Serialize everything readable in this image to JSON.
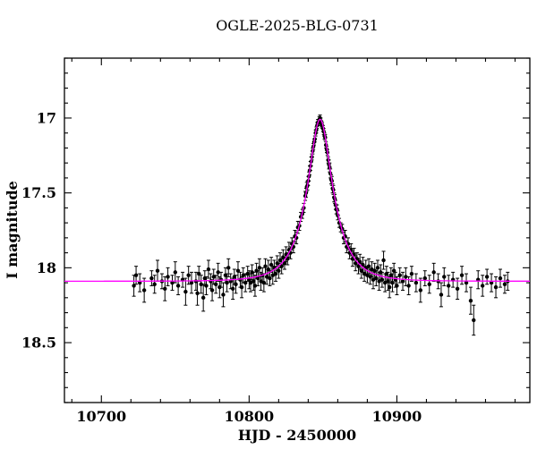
{
  "chart_data": {
    "type": "scatter",
    "title": "OGLE-2025-BLG-0731",
    "xlabel": "HJD - 2450000",
    "ylabel": "I magnitude",
    "xlim": [
      10675,
      10990
    ],
    "ylim": [
      16.6,
      18.9
    ],
    "y_axis_inverted_magnitude": true,
    "x_ticks_major": [
      10700,
      10800,
      10900
    ],
    "x_minor_step": 20,
    "y_ticks_major": [
      17,
      17.5,
      18,
      18.5
    ],
    "y_minor_step": 0.1,
    "grid": false,
    "legend": "none",
    "series": [
      {
        "name": "OGLE I-band photometry",
        "type": "scatter",
        "marker": "filled-circle-with-errorbars",
        "color": "#000000",
        "points": [
          [
            10722,
            18.12,
            0.07
          ],
          [
            10723.5,
            18.05,
            0.06
          ],
          [
            10726,
            18.1,
            0.06
          ],
          [
            10729,
            18.15,
            0.08
          ],
          [
            10734,
            18.07,
            0.05
          ],
          [
            10736,
            18.11,
            0.06
          ],
          [
            10738,
            18.02,
            0.07
          ],
          [
            10741,
            18.09,
            0.05
          ],
          [
            10743,
            18.14,
            0.08
          ],
          [
            10745,
            18.06,
            0.06
          ],
          [
            10748,
            18.1,
            0.05
          ],
          [
            10750,
            18.03,
            0.07
          ],
          [
            10752,
            18.12,
            0.06
          ],
          [
            10755,
            18.08,
            0.05
          ],
          [
            10757,
            18.16,
            0.09
          ],
          [
            10759,
            18.05,
            0.06
          ],
          [
            10761,
            18.1,
            0.07
          ],
          [
            10764,
            18.09,
            0.06
          ],
          [
            10765,
            18.17,
            0.08
          ],
          [
            10766,
            18.04,
            0.05
          ],
          [
            10767.5,
            18.11,
            0.06
          ],
          [
            10769,
            18.2,
            0.09
          ],
          [
            10770,
            18.07,
            0.05
          ],
          [
            10771,
            18.12,
            0.06
          ],
          [
            10772.5,
            18.01,
            0.06
          ],
          [
            10774,
            18.09,
            0.05
          ],
          [
            10775,
            18.15,
            0.07
          ],
          [
            10776,
            18.06,
            0.05
          ],
          [
            10777.5,
            18.11,
            0.06
          ],
          [
            10779,
            18.03,
            0.06
          ],
          [
            10780,
            18.13,
            0.07
          ],
          [
            10781,
            18.08,
            0.05
          ],
          [
            10782.5,
            18.18,
            0.08
          ],
          [
            10784,
            18.05,
            0.05
          ],
          [
            10785,
            18.1,
            0.06
          ],
          [
            10786,
            18.0,
            0.06
          ],
          [
            10787.5,
            18.09,
            0.05
          ],
          [
            10789,
            18.14,
            0.07
          ],
          [
            10790,
            18.06,
            0.05
          ],
          [
            10791,
            18.11,
            0.06
          ],
          [
            10792.5,
            18.02,
            0.06
          ],
          [
            10794,
            18.08,
            0.05
          ],
          [
            10795,
            18.13,
            0.07
          ],
          [
            10796,
            18.05,
            0.05
          ],
          [
            10797.5,
            18.1,
            0.06
          ],
          [
            10799,
            18.04,
            0.05
          ],
          [
            10800,
            18.08,
            0.06
          ],
          [
            10801,
            18.1,
            0.06
          ],
          [
            10802,
            18.03,
            0.05
          ],
          [
            10803,
            18.09,
            0.06
          ],
          [
            10804,
            18.12,
            0.07
          ],
          [
            10805,
            18.02,
            0.05
          ],
          [
            10806,
            18.07,
            0.05
          ],
          [
            10807,
            18.0,
            0.06
          ],
          [
            10808,
            18.09,
            0.06
          ],
          [
            10809,
            18.05,
            0.05
          ],
          [
            10810,
            18.1,
            0.06
          ],
          [
            10811,
            17.99,
            0.05
          ],
          [
            10812,
            18.06,
            0.05
          ],
          [
            10813,
            18.01,
            0.06
          ],
          [
            10814,
            18.07,
            0.05
          ],
          [
            10815,
            17.98,
            0.05
          ],
          [
            10816,
            18.05,
            0.06
          ],
          [
            10817,
            18.0,
            0.05
          ],
          [
            10818,
            18.04,
            0.05
          ],
          [
            10819,
            17.97,
            0.05
          ],
          [
            10820,
            18.02,
            0.05
          ],
          [
            10821,
            17.95,
            0.05
          ],
          [
            10822,
            17.99,
            0.05
          ],
          [
            10823,
            17.93,
            0.05
          ],
          [
            10824,
            17.97,
            0.04
          ],
          [
            10825,
            17.91,
            0.05
          ],
          [
            10826,
            17.94,
            0.04
          ],
          [
            10827,
            17.88,
            0.05
          ],
          [
            10828,
            17.9,
            0.04
          ],
          [
            10829,
            17.84,
            0.04
          ],
          [
            10830,
            17.86,
            0.04
          ],
          [
            10831,
            17.79,
            0.04
          ],
          [
            10832,
            17.8,
            0.04
          ],
          [
            10833,
            17.73,
            0.04
          ],
          [
            10834,
            17.72,
            0.03
          ],
          [
            10835,
            17.66,
            0.03
          ],
          [
            10836,
            17.64,
            0.03
          ],
          [
            10837,
            17.6,
            0.03
          ],
          [
            10838,
            17.52,
            0.03
          ],
          [
            10838.5,
            17.5,
            0.03
          ],
          [
            10839,
            17.46,
            0.03
          ],
          [
            10839.5,
            17.45,
            0.03
          ],
          [
            10840,
            17.42,
            0.03
          ],
          [
            10840.5,
            17.39,
            0.03
          ],
          [
            10841,
            17.35,
            0.03
          ],
          [
            10841.5,
            17.32,
            0.03
          ],
          [
            10842,
            17.29,
            0.03
          ],
          [
            10842.5,
            17.26,
            0.02
          ],
          [
            10843,
            17.22,
            0.02
          ],
          [
            10843.5,
            17.19,
            0.02
          ],
          [
            10844,
            17.16,
            0.02
          ],
          [
            10844.5,
            17.14,
            0.02
          ],
          [
            10845,
            17.1,
            0.02
          ],
          [
            10845.5,
            17.08,
            0.02
          ],
          [
            10846,
            17.05,
            0.02
          ],
          [
            10846.5,
            17.03,
            0.02
          ],
          [
            10847,
            17.03,
            0.02
          ],
          [
            10847.5,
            17.01,
            0.02
          ],
          [
            10848,
            17.0,
            0.02
          ],
          [
            10848.5,
            17.02,
            0.02
          ],
          [
            10849,
            17.04,
            0.02
          ],
          [
            10849.5,
            17.05,
            0.02
          ],
          [
            10850,
            17.07,
            0.02
          ],
          [
            10850.5,
            17.09,
            0.02
          ],
          [
            10851,
            17.12,
            0.02
          ],
          [
            10851.5,
            17.13,
            0.02
          ],
          [
            10852,
            17.18,
            0.02
          ],
          [
            10852.5,
            17.21,
            0.02
          ],
          [
            10853,
            17.23,
            0.02
          ],
          [
            10853.5,
            17.28,
            0.02
          ],
          [
            10854,
            17.31,
            0.03
          ],
          [
            10854.5,
            17.33,
            0.03
          ],
          [
            10855,
            17.37,
            0.03
          ],
          [
            10855.5,
            17.41,
            0.03
          ],
          [
            10856,
            17.42,
            0.03
          ],
          [
            10856.5,
            17.47,
            0.03
          ],
          [
            10857,
            17.48,
            0.03
          ],
          [
            10857.5,
            17.53,
            0.03
          ],
          [
            10858,
            17.54,
            0.03
          ],
          [
            10858.5,
            17.58,
            0.03
          ],
          [
            10859,
            17.61,
            0.03
          ],
          [
            10859.5,
            17.61,
            0.03
          ],
          [
            10860,
            17.65,
            0.03
          ],
          [
            10861,
            17.7,
            0.03
          ],
          [
            10862,
            17.73,
            0.03
          ],
          [
            10863,
            17.74,
            0.03
          ],
          [
            10864,
            17.8,
            0.04
          ],
          [
            10865,
            17.79,
            0.04
          ],
          [
            10866,
            17.86,
            0.04
          ],
          [
            10867,
            17.84,
            0.04
          ],
          [
            10868,
            17.9,
            0.04
          ],
          [
            10869,
            17.88,
            0.04
          ],
          [
            10870,
            17.94,
            0.05
          ],
          [
            10871,
            17.91,
            0.04
          ],
          [
            10872,
            17.97,
            0.05
          ],
          [
            10873,
            17.94,
            0.04
          ],
          [
            10874,
            17.99,
            0.05
          ],
          [
            10875,
            17.96,
            0.05
          ],
          [
            10876,
            18.02,
            0.05
          ],
          [
            10877,
            17.98,
            0.05
          ],
          [
            10878,
            18.04,
            0.05
          ],
          [
            10879,
            18.0,
            0.05
          ],
          [
            10880,
            18.05,
            0.05
          ],
          [
            10881,
            17.99,
            0.05
          ],
          [
            10882,
            18.06,
            0.05
          ],
          [
            10883,
            18.01,
            0.05
          ],
          [
            10884,
            18.08,
            0.06
          ],
          [
            10885,
            18.02,
            0.05
          ],
          [
            10886,
            18.07,
            0.05
          ],
          [
            10887,
            18.0,
            0.05
          ],
          [
            10888,
            18.09,
            0.06
          ],
          [
            10889,
            18.03,
            0.05
          ],
          [
            10890,
            18.08,
            0.05
          ],
          [
            10891,
            17.95,
            0.06
          ],
          [
            10892,
            18.1,
            0.06
          ],
          [
            10893,
            18.04,
            0.05
          ],
          [
            10894,
            18.09,
            0.06
          ],
          [
            10895,
            18.13,
            0.07
          ],
          [
            10896,
            18.05,
            0.05
          ],
          [
            10897,
            18.1,
            0.06
          ],
          [
            10898,
            18.02,
            0.05
          ],
          [
            10899,
            18.08,
            0.05
          ],
          [
            10900,
            18.12,
            0.06
          ],
          [
            10902,
            18.05,
            0.05
          ],
          [
            10904,
            18.09,
            0.06
          ],
          [
            10906,
            18.06,
            0.06
          ],
          [
            10908,
            18.12,
            0.06
          ],
          [
            10910,
            18.04,
            0.05
          ],
          [
            10913,
            18.1,
            0.06
          ],
          [
            10916,
            18.15,
            0.08
          ],
          [
            10919,
            18.07,
            0.05
          ],
          [
            10922,
            18.11,
            0.06
          ],
          [
            10925,
            18.03,
            0.06
          ],
          [
            10928,
            18.09,
            0.05
          ],
          [
            10930,
            18.18,
            0.08
          ],
          [
            10932,
            18.06,
            0.06
          ],
          [
            10935,
            18.12,
            0.07
          ],
          [
            10938,
            18.08,
            0.05
          ],
          [
            10941,
            18.14,
            0.07
          ],
          [
            10944,
            18.05,
            0.06
          ],
          [
            10947,
            18.1,
            0.06
          ],
          [
            10950,
            18.22,
            0.09
          ],
          [
            10952,
            18.35,
            0.1
          ],
          [
            10955,
            18.08,
            0.06
          ],
          [
            10958,
            18.12,
            0.07
          ],
          [
            10961,
            18.06,
            0.05
          ],
          [
            10964,
            18.1,
            0.06
          ],
          [
            10967,
            18.13,
            0.07
          ],
          [
            10970,
            18.07,
            0.06
          ],
          [
            10973,
            18.11,
            0.06
          ],
          [
            10975,
            18.09,
            0.06
          ]
        ]
      },
      {
        "name": "Microlensing model fit",
        "type": "line",
        "color": "#ff00ff",
        "model": {
          "kind": "paczynski",
          "t0": 10848,
          "tE": 17,
          "u0": 0.39,
          "I_baseline": 18.09,
          "I_peak": 17.01
        }
      }
    ]
  }
}
